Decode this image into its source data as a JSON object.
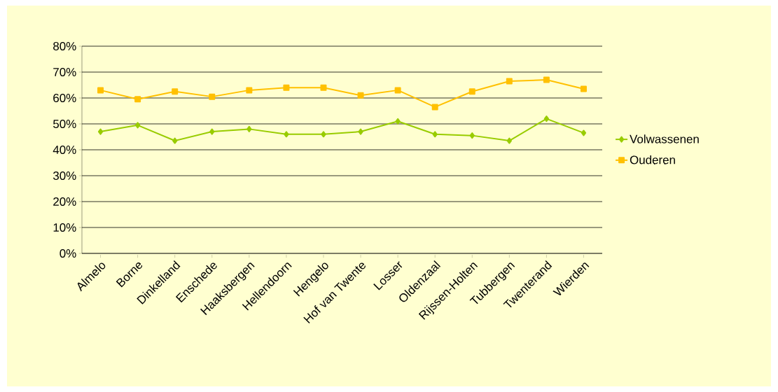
{
  "chart_data": {
    "type": "line",
    "categories": [
      "Almelo",
      "Borne",
      "Dinkelland",
      "Enschede",
      "Haaksbergen",
      "Hellendoorn",
      "Hengelo",
      "Hof van Twente",
      "Losser",
      "Oldenzaal",
      "Rijssen-Holten",
      "Tubbergen",
      "Twenterand",
      "Wierden"
    ],
    "series": [
      {
        "name": "Volwassenen",
        "color": "#99cc00",
        "marker": "diamond",
        "values": [
          47,
          49.5,
          43.5,
          47,
          48,
          46,
          46,
          47,
          51,
          46,
          45.5,
          43.5,
          52,
          46.5
        ]
      },
      {
        "name": "Ouderen",
        "color": "#ffc000",
        "marker": "square",
        "values": [
          63,
          59.5,
          62.5,
          60.5,
          63,
          64,
          64,
          61,
          63,
          56.5,
          62.5,
          66.5,
          67,
          63.5
        ]
      }
    ],
    "ylim": [
      0,
      80
    ],
    "yticks": [
      {
        "value": 0,
        "label": "0%"
      },
      {
        "value": 10,
        "label": "10%"
      },
      {
        "value": 20,
        "label": "20%"
      },
      {
        "value": 30,
        "label": "30%"
      },
      {
        "value": 40,
        "label": "40%"
      },
      {
        "value": 50,
        "label": "50%"
      },
      {
        "value": 60,
        "label": "60%"
      },
      {
        "value": 70,
        "label": "70%"
      },
      {
        "value": 80,
        "label": "80%"
      }
    ],
    "grid": "y",
    "legend": "right",
    "line_style": "solid"
  }
}
